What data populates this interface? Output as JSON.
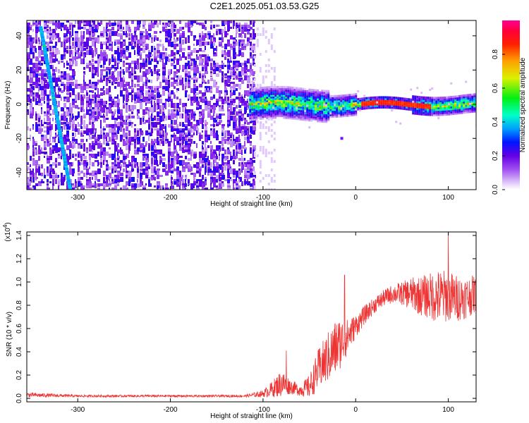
{
  "title": "C2E1.2025.051.03.53.G25",
  "colorbar": {
    "label": "Normalized spectral amplitude",
    "ticks": [
      0.0,
      0.2,
      0.4,
      0.6,
      0.8
    ],
    "tick_labels": [
      "0.0",
      "0.2",
      "0.4",
      "0.6",
      "0.8"
    ],
    "range": [
      0,
      1
    ]
  },
  "chart_data": [
    {
      "type": "heatmap",
      "xlabel": "Height of straight line (km)",
      "ylabel": "Frequency (Hz)",
      "xlim": [
        -355,
        130
      ],
      "ylim": [
        -50,
        49
      ],
      "x_ticks": [
        -300,
        -200,
        -100,
        0,
        100
      ],
      "x_tick_labels": [
        "-300",
        "-200",
        "-100",
        "0",
        "100"
      ],
      "y_ticks": [
        -40,
        -20,
        0,
        20,
        40
      ],
      "y_tick_labels": [
        "-40",
        "-20",
        "0",
        "20",
        "40"
      ],
      "features": {
        "broadband_noise": {
          "x_range": [
            -355,
            -110
          ],
          "y_range": [
            -50,
            49
          ],
          "amplitude": 0.2
        },
        "diagonal_streak": {
          "x_start": -340,
          "y_start": 45,
          "x_end": -308,
          "y_end": -50,
          "amplitude": 0.35
        },
        "narrowband_line": {
          "x_range": [
            -115,
            130
          ],
          "center_hz": 0,
          "amplitude": 0.9
        },
        "isolated_point": {
          "x": -15,
          "y": -20
        }
      }
    },
    {
      "type": "line",
      "xlabel": "Height of straight line (km)",
      "ylabel": "SNR (10 * v/v)",
      "y_multiplier": "(x10",
      "y_multiplier_exp": "4",
      "xlim": [
        -355,
        130
      ],
      "ylim": [
        -0.03,
        1.43
      ],
      "x_ticks": [
        -300,
        -200,
        -100,
        0,
        100
      ],
      "x_tick_labels": [
        "-300",
        "-200",
        "-100",
        "0",
        "100"
      ],
      "y_ticks": [
        0.0,
        0.2,
        0.4,
        0.6,
        0.8,
        1.0,
        1.2,
        1.4
      ],
      "y_tick_labels": [
        "0.0",
        "0.2",
        "0.4",
        "0.6",
        "0.8",
        "1.0",
        "1.2",
        "1.4"
      ],
      "color": "#ee3333",
      "series_envelope": {
        "x": [
          -355,
          -300,
          -200,
          -120,
          -100,
          -90,
          -80,
          -70,
          -60,
          -50,
          -40,
          -30,
          -20,
          -10,
          0,
          10,
          20,
          30,
          40,
          50,
          60,
          70,
          80,
          90,
          100,
          110,
          120,
          130
        ],
        "mean": [
          0.03,
          0.02,
          0.02,
          0.02,
          0.04,
          0.08,
          0.13,
          0.1,
          0.07,
          0.1,
          0.25,
          0.35,
          0.45,
          0.52,
          0.62,
          0.72,
          0.8,
          0.86,
          0.9,
          0.9,
          0.9,
          0.88,
          0.88,
          0.87,
          0.88,
          0.86,
          0.87,
          0.9
        ],
        "amp": [
          0.02,
          0.01,
          0.01,
          0.01,
          0.03,
          0.07,
          0.12,
          0.06,
          0.05,
          0.1,
          0.18,
          0.22,
          0.25,
          0.16,
          0.1,
          0.08,
          0.07,
          0.07,
          0.08,
          0.1,
          0.14,
          0.17,
          0.2,
          0.24,
          0.22,
          0.2,
          0.18,
          0.16
        ]
      },
      "peaks": [
        {
          "x": 100,
          "y": 1.43
        },
        {
          "x": -12,
          "y": 1.06
        },
        {
          "x": -75,
          "y": 0.41
        }
      ]
    }
  ]
}
